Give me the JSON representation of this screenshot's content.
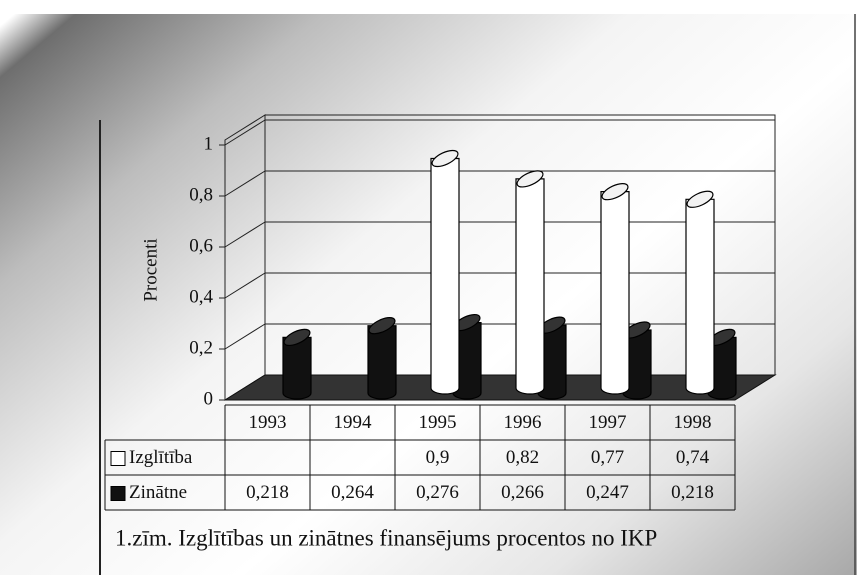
{
  "chart_data": {
    "type": "bar3d",
    "title": "1.zīm. Izglītības un zinātnes finansējums procentos no IKP",
    "ylabel": "Procenti",
    "categories": [
      "1993",
      "1994",
      "1995",
      "1996",
      "1997",
      "1998"
    ],
    "series": [
      {
        "name": "Izglītība",
        "color": "#ffffff",
        "values": [
          null,
          null,
          0.9,
          0.82,
          0.77,
          0.74
        ],
        "value_labels": [
          null,
          null,
          "0,9",
          "0,82",
          "0,77",
          "0,74"
        ]
      },
      {
        "name": "Zinātne",
        "color": "#111111",
        "values": [
          0.218,
          0.264,
          0.276,
          0.266,
          0.247,
          0.218
        ],
        "value_labels": [
          "0,218",
          "0,264",
          "0,276",
          "0,266",
          "0,247",
          "0,218"
        ]
      }
    ],
    "ylim": [
      0,
      1
    ],
    "yticks": [
      0,
      {
        "value": 0.2,
        "label": "0,2"
      },
      {
        "value": 0.4,
        "label": "0,4"
      },
      {
        "value": 0.6,
        "label": "0,6"
      },
      {
        "value": 0.8,
        "label": "0,8"
      },
      1
    ],
    "grid": true
  }
}
